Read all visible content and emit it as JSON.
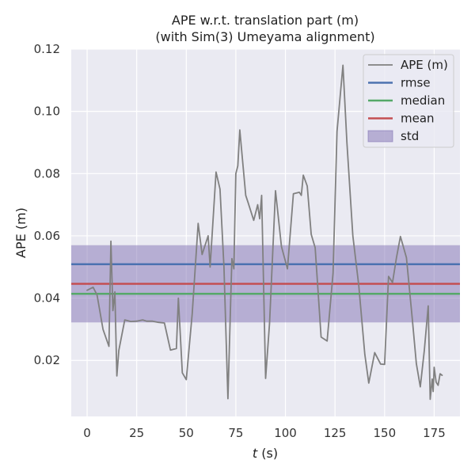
{
  "chart_data": {
    "type": "line",
    "title": "APE w.r.t. translation part (m)",
    "subtitle": "(with Sim(3) Umeyama alignment)",
    "xlabel_var": "t",
    "xlabel_unit": " (s)",
    "ylabel": "APE (m)",
    "xlim": [
      -8,
      188
    ],
    "ylim": [
      0.002,
      0.12
    ],
    "xticks": [
      0,
      25,
      50,
      75,
      100,
      125,
      150,
      175
    ],
    "yticks": [
      0.02,
      0.04,
      0.06,
      0.08,
      0.1,
      0.12
    ],
    "ytick_labels": [
      "0.02",
      "0.04",
      "0.06",
      "0.08",
      "0.10",
      "0.12"
    ],
    "grid": true,
    "legend_position": "top-right",
    "series": [
      {
        "name": "APE (m)",
        "color": "#808080",
        "x": [
          0,
          3,
          5,
          8,
          11,
          12,
          13,
          14,
          15,
          16,
          19,
          22,
          25,
          28,
          30,
          33,
          36,
          39,
          42,
          45,
          46,
          48,
          50,
          53,
          56,
          58,
          61,
          62,
          65,
          67,
          69,
          71,
          73,
          74,
          75,
          76,
          77,
          78,
          79,
          80,
          81,
          84,
          86,
          87,
          88,
          90,
          92,
          95,
          98,
          101,
          104,
          107,
          108,
          109,
          111,
          113,
          115,
          118,
          121,
          124,
          126,
          129,
          131,
          134,
          137,
          140,
          142,
          145,
          148,
          150,
          152,
          154,
          156,
          158,
          161,
          164,
          166,
          168,
          170,
          172,
          173,
          174,
          174.5,
          175,
          176,
          177,
          178,
          179
        ],
        "y": [
          0.0425,
          0.0435,
          0.041,
          0.03,
          0.0245,
          0.0583,
          0.036,
          0.042,
          0.015,
          0.0232,
          0.033,
          0.0325,
          0.0326,
          0.033,
          0.0326,
          0.0326,
          0.0322,
          0.032,
          0.0233,
          0.0238,
          0.04,
          0.016,
          0.0138,
          0.035,
          0.064,
          0.054,
          0.06,
          0.05,
          0.0805,
          0.075,
          0.05,
          0.0077,
          0.0527,
          0.0494,
          0.08,
          0.0825,
          0.094,
          0.087,
          0.08,
          0.073,
          0.071,
          0.065,
          0.07,
          0.0655,
          0.073,
          0.0142,
          0.032,
          0.0745,
          0.0566,
          0.0494,
          0.0735,
          0.074,
          0.073,
          0.0795,
          0.076,
          0.0605,
          0.0562,
          0.0275,
          0.0262,
          0.048,
          0.0935,
          0.1148,
          0.09,
          0.06,
          0.044,
          0.022,
          0.0127,
          0.0225,
          0.0188,
          0.0187,
          0.047,
          0.045,
          0.053,
          0.0598,
          0.053,
          0.033,
          0.019,
          0.0115,
          0.023,
          0.0375,
          0.0075,
          0.014,
          0.01,
          0.0178,
          0.013,
          0.012,
          0.0157,
          0.0152
        ]
      }
    ],
    "hlines": [
      {
        "name": "rmse",
        "value": 0.0509,
        "color": "#4c72b0"
      },
      {
        "name": "median",
        "value": 0.0414,
        "color": "#55a868"
      },
      {
        "name": "mean",
        "value": 0.0446,
        "color": "#c44e52"
      }
    ],
    "std_band": {
      "name": "std",
      "low": 0.0322,
      "high": 0.057,
      "color": "#8172b3"
    }
  }
}
